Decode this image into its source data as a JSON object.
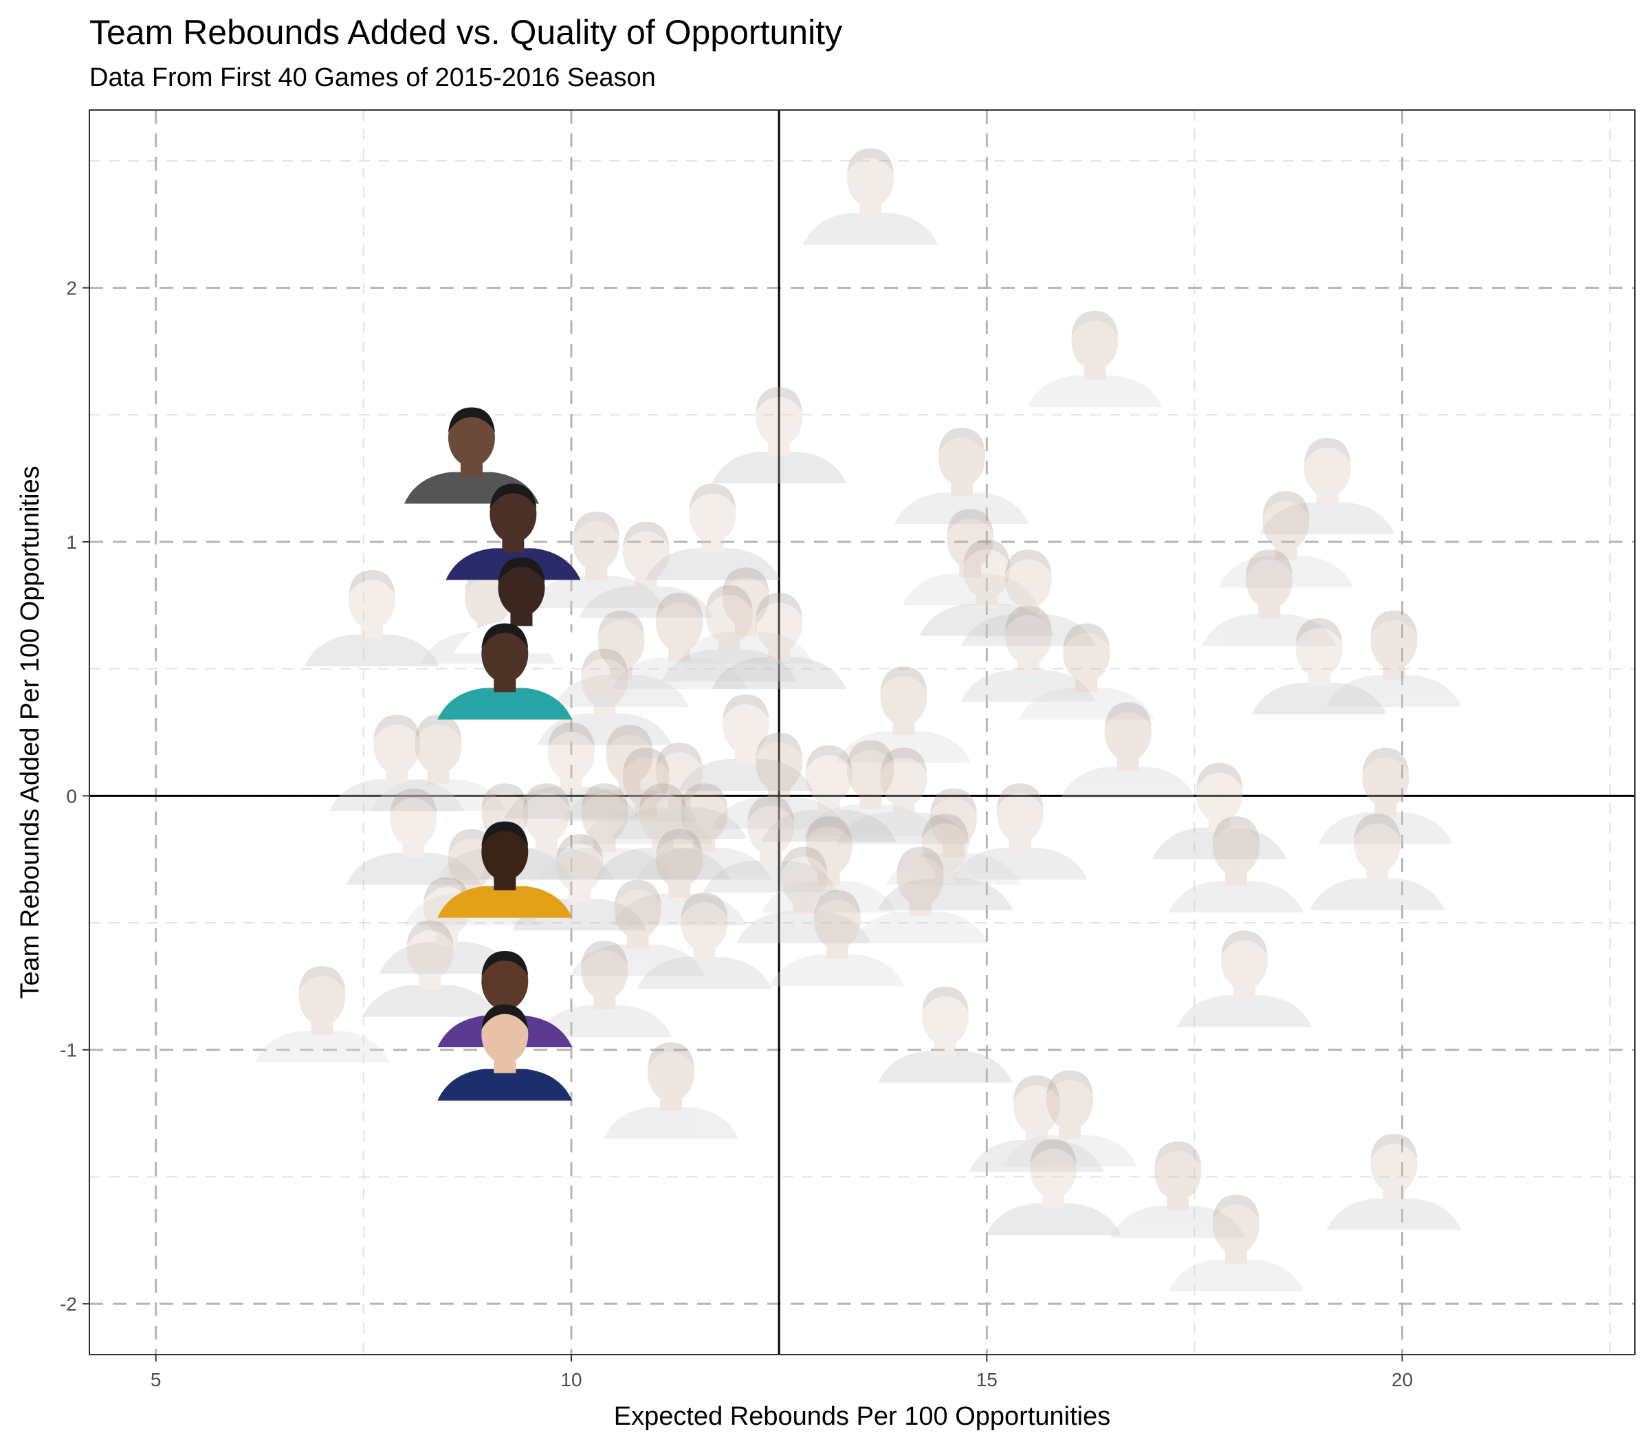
{
  "chart_data": {
    "type": "scatter",
    "title": "Team Rebounds Added vs. Quality of Opportunity",
    "subtitle": "Data From First 40 Games of 2015-2016 Season",
    "xlabel": "Expected Rebounds Per 100 Opportunities",
    "ylabel": "Team Rebounds Added Per 100 Opportunities",
    "xlim": [
      4.2,
      22.8
    ],
    "ylim": [
      -2.2,
      2.7
    ],
    "x_ticks": [
      5,
      10,
      15,
      20
    ],
    "y_ticks": [
      -2,
      -1,
      0,
      1,
      2
    ],
    "x_tick_labels": [
      "5",
      "10",
      "15",
      "20"
    ],
    "y_tick_labels": [
      "-2",
      "-1",
      "0",
      "1",
      "2"
    ],
    "reference_lines": {
      "x": 12.5,
      "y": 0
    },
    "grid": true,
    "marker": "player headshot",
    "points_highlighted": [
      {
        "x": 8.8,
        "y": 1.28
      },
      {
        "x": 9.3,
        "y": 0.98
      },
      {
        "x": 9.4,
        "y": 0.69
      },
      {
        "x": 9.2,
        "y": 0.43
      },
      {
        "x": 9.2,
        "y": -0.35
      },
      {
        "x": 9.2,
        "y": -0.86
      },
      {
        "x": 9.2,
        "y": -1.07
      }
    ],
    "points_faded": [
      {
        "x": 13.6,
        "y": 2.3
      },
      {
        "x": 16.3,
        "y": 1.66
      },
      {
        "x": 12.5,
        "y": 1.36
      },
      {
        "x": 14.7,
        "y": 1.2
      },
      {
        "x": 19.1,
        "y": 1.16
      },
      {
        "x": 18.6,
        "y": 0.95
      },
      {
        "x": 11.7,
        "y": 0.98
      },
      {
        "x": 10.3,
        "y": 0.87
      },
      {
        "x": 10.9,
        "y": 0.83
      },
      {
        "x": 14.8,
        "y": 0.88
      },
      {
        "x": 15.0,
        "y": 0.76
      },
      {
        "x": 18.4,
        "y": 0.72
      },
      {
        "x": 15.5,
        "y": 0.72
      },
      {
        "x": 12.1,
        "y": 0.65
      },
      {
        "x": 7.6,
        "y": 0.64
      },
      {
        "x": 9.0,
        "y": 0.65
      },
      {
        "x": 11.9,
        "y": 0.58
      },
      {
        "x": 11.3,
        "y": 0.55
      },
      {
        "x": 12.5,
        "y": 0.55
      },
      {
        "x": 10.6,
        "y": 0.48
      },
      {
        "x": 15.5,
        "y": 0.5
      },
      {
        "x": 16.2,
        "y": 0.43
      },
      {
        "x": 19.0,
        "y": 0.45
      },
      {
        "x": 19.9,
        "y": 0.48
      },
      {
        "x": 10.4,
        "y": 0.33
      },
      {
        "x": 14.0,
        "y": 0.26
      },
      {
        "x": 12.1,
        "y": 0.15
      },
      {
        "x": 16.7,
        "y": 0.12
      },
      {
        "x": 7.9,
        "y": 0.07
      },
      {
        "x": 8.4,
        "y": 0.07
      },
      {
        "x": 10.0,
        "y": 0.04
      },
      {
        "x": 10.7,
        "y": 0.03
      },
      {
        "x": 14.0,
        "y": -0.06
      },
      {
        "x": 13.6,
        "y": -0.03
      },
      {
        "x": 13.1,
        "y": -0.05
      },
      {
        "x": 12.5,
        "y": 0.0
      },
      {
        "x": 11.3,
        "y": -0.04
      },
      {
        "x": 10.9,
        "y": -0.06
      },
      {
        "x": 17.8,
        "y": -0.12
      },
      {
        "x": 19.8,
        "y": -0.06
      },
      {
        "x": 15.4,
        "y": -0.2
      },
      {
        "x": 14.6,
        "y": -0.22
      },
      {
        "x": 8.1,
        "y": -0.22
      },
      {
        "x": 9.2,
        "y": -0.2
      },
      {
        "x": 9.7,
        "y": -0.2
      },
      {
        "x": 10.4,
        "y": -0.2
      },
      {
        "x": 11.1,
        "y": -0.2
      },
      {
        "x": 11.6,
        "y": -0.2
      },
      {
        "x": 12.4,
        "y": -0.25
      },
      {
        "x": 13.1,
        "y": -0.33
      },
      {
        "x": 14.5,
        "y": -0.32
      },
      {
        "x": 18.0,
        "y": -0.33
      },
      {
        "x": 19.7,
        "y": -0.32
      },
      {
        "x": 8.8,
        "y": -0.38
      },
      {
        "x": 10.1,
        "y": -0.4
      },
      {
        "x": 11.3,
        "y": -0.38
      },
      {
        "x": 12.8,
        "y": -0.45
      },
      {
        "x": 14.2,
        "y": -0.45
      },
      {
        "x": 8.5,
        "y": -0.57
      },
      {
        "x": 10.8,
        "y": -0.58
      },
      {
        "x": 11.6,
        "y": -0.63
      },
      {
        "x": 13.2,
        "y": -0.62
      },
      {
        "x": 8.3,
        "y": -0.74
      },
      {
        "x": 10.4,
        "y": -0.82
      },
      {
        "x": 18.1,
        "y": -0.78
      },
      {
        "x": 7.0,
        "y": -0.92
      },
      {
        "x": 14.5,
        "y": -1.0
      },
      {
        "x": 11.2,
        "y": -1.22
      },
      {
        "x": 15.6,
        "y": -1.35
      },
      {
        "x": 16.0,
        "y": -1.33
      },
      {
        "x": 15.8,
        "y": -1.6
      },
      {
        "x": 17.3,
        "y": -1.61
      },
      {
        "x": 19.9,
        "y": -1.58
      },
      {
        "x": 18.0,
        "y": -1.82
      }
    ]
  }
}
